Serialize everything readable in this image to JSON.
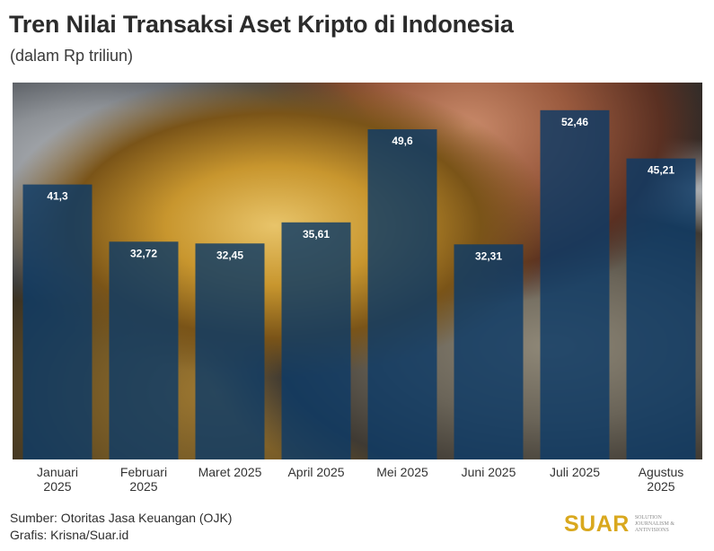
{
  "header": {
    "title": "Tren Nilai Transaksi Aset Kripto di Indonesia",
    "subtitle": "(dalam Rp triliun)"
  },
  "footer": {
    "source": "Sumber: Otoritas Jasa Keuangan (OJK)",
    "credit": "Grafis: Krisna/Suar.id",
    "logo_text": "SUAR",
    "logo_tagline": "SOLUTION JOURNALISM & ANTIVISIONS"
  },
  "colors": {
    "bar": "#0d3a66",
    "bar_label": "#ffffff",
    "logo": "#d9a81e"
  },
  "chart_data": {
    "type": "bar",
    "title": "Tren Nilai Transaksi Aset Kripto di Indonesia",
    "subtitle": "(dalam Rp triliun)",
    "categories": [
      [
        "Januari",
        "2025"
      ],
      [
        "Februari",
        "2025"
      ],
      [
        "Maret 2025"
      ],
      [
        "April 2025"
      ],
      [
        "Mei 2025"
      ],
      [
        "Juni 2025"
      ],
      [
        "Juli 2025"
      ],
      [
        "Agustus",
        "2025"
      ]
    ],
    "values": [
      41.3,
      32.72,
      32.45,
      35.61,
      49.6,
      32.31,
      52.46,
      45.21
    ],
    "data_labels": [
      "41,3",
      "32,72",
      "32,45",
      "35,61",
      "49,6",
      "32,31",
      "52,46",
      "45,21"
    ],
    "ylim": [
      0,
      55
    ],
    "grid": false,
    "legend": "none"
  }
}
